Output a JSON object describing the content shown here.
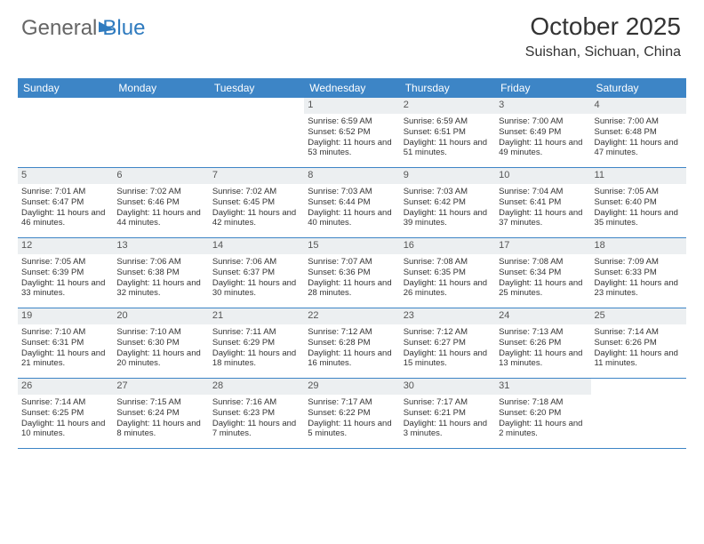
{
  "logo": {
    "part1": "General",
    "part2": "Blue"
  },
  "title": "October 2025",
  "location": "Suishan, Sichuan, China",
  "dayNames": [
    "Sunday",
    "Monday",
    "Tuesday",
    "Wednesday",
    "Thursday",
    "Friday",
    "Saturday"
  ],
  "colors": {
    "headerBar": "#3d85c6",
    "numBg": "#eceff1",
    "logoBlue": "#2f7bbf"
  },
  "weeks": [
    [
      {
        "n": "",
        "sr": "",
        "ss": "",
        "dl": ""
      },
      {
        "n": "",
        "sr": "",
        "ss": "",
        "dl": ""
      },
      {
        "n": "",
        "sr": "",
        "ss": "",
        "dl": ""
      },
      {
        "n": "1",
        "sr": "Sunrise: 6:59 AM",
        "ss": "Sunset: 6:52 PM",
        "dl": "Daylight: 11 hours and 53 minutes."
      },
      {
        "n": "2",
        "sr": "Sunrise: 6:59 AM",
        "ss": "Sunset: 6:51 PM",
        "dl": "Daylight: 11 hours and 51 minutes."
      },
      {
        "n": "3",
        "sr": "Sunrise: 7:00 AM",
        "ss": "Sunset: 6:49 PM",
        "dl": "Daylight: 11 hours and 49 minutes."
      },
      {
        "n": "4",
        "sr": "Sunrise: 7:00 AM",
        "ss": "Sunset: 6:48 PM",
        "dl": "Daylight: 11 hours and 47 minutes."
      }
    ],
    [
      {
        "n": "5",
        "sr": "Sunrise: 7:01 AM",
        "ss": "Sunset: 6:47 PM",
        "dl": "Daylight: 11 hours and 46 minutes."
      },
      {
        "n": "6",
        "sr": "Sunrise: 7:02 AM",
        "ss": "Sunset: 6:46 PM",
        "dl": "Daylight: 11 hours and 44 minutes."
      },
      {
        "n": "7",
        "sr": "Sunrise: 7:02 AM",
        "ss": "Sunset: 6:45 PM",
        "dl": "Daylight: 11 hours and 42 minutes."
      },
      {
        "n": "8",
        "sr": "Sunrise: 7:03 AM",
        "ss": "Sunset: 6:44 PM",
        "dl": "Daylight: 11 hours and 40 minutes."
      },
      {
        "n": "9",
        "sr": "Sunrise: 7:03 AM",
        "ss": "Sunset: 6:42 PM",
        "dl": "Daylight: 11 hours and 39 minutes."
      },
      {
        "n": "10",
        "sr": "Sunrise: 7:04 AM",
        "ss": "Sunset: 6:41 PM",
        "dl": "Daylight: 11 hours and 37 minutes."
      },
      {
        "n": "11",
        "sr": "Sunrise: 7:05 AM",
        "ss": "Sunset: 6:40 PM",
        "dl": "Daylight: 11 hours and 35 minutes."
      }
    ],
    [
      {
        "n": "12",
        "sr": "Sunrise: 7:05 AM",
        "ss": "Sunset: 6:39 PM",
        "dl": "Daylight: 11 hours and 33 minutes."
      },
      {
        "n": "13",
        "sr": "Sunrise: 7:06 AM",
        "ss": "Sunset: 6:38 PM",
        "dl": "Daylight: 11 hours and 32 minutes."
      },
      {
        "n": "14",
        "sr": "Sunrise: 7:06 AM",
        "ss": "Sunset: 6:37 PM",
        "dl": "Daylight: 11 hours and 30 minutes."
      },
      {
        "n": "15",
        "sr": "Sunrise: 7:07 AM",
        "ss": "Sunset: 6:36 PM",
        "dl": "Daylight: 11 hours and 28 minutes."
      },
      {
        "n": "16",
        "sr": "Sunrise: 7:08 AM",
        "ss": "Sunset: 6:35 PM",
        "dl": "Daylight: 11 hours and 26 minutes."
      },
      {
        "n": "17",
        "sr": "Sunrise: 7:08 AM",
        "ss": "Sunset: 6:34 PM",
        "dl": "Daylight: 11 hours and 25 minutes."
      },
      {
        "n": "18",
        "sr": "Sunrise: 7:09 AM",
        "ss": "Sunset: 6:33 PM",
        "dl": "Daylight: 11 hours and 23 minutes."
      }
    ],
    [
      {
        "n": "19",
        "sr": "Sunrise: 7:10 AM",
        "ss": "Sunset: 6:31 PM",
        "dl": "Daylight: 11 hours and 21 minutes."
      },
      {
        "n": "20",
        "sr": "Sunrise: 7:10 AM",
        "ss": "Sunset: 6:30 PM",
        "dl": "Daylight: 11 hours and 20 minutes."
      },
      {
        "n": "21",
        "sr": "Sunrise: 7:11 AM",
        "ss": "Sunset: 6:29 PM",
        "dl": "Daylight: 11 hours and 18 minutes."
      },
      {
        "n": "22",
        "sr": "Sunrise: 7:12 AM",
        "ss": "Sunset: 6:28 PM",
        "dl": "Daylight: 11 hours and 16 minutes."
      },
      {
        "n": "23",
        "sr": "Sunrise: 7:12 AM",
        "ss": "Sunset: 6:27 PM",
        "dl": "Daylight: 11 hours and 15 minutes."
      },
      {
        "n": "24",
        "sr": "Sunrise: 7:13 AM",
        "ss": "Sunset: 6:26 PM",
        "dl": "Daylight: 11 hours and 13 minutes."
      },
      {
        "n": "25",
        "sr": "Sunrise: 7:14 AM",
        "ss": "Sunset: 6:26 PM",
        "dl": "Daylight: 11 hours and 11 minutes."
      }
    ],
    [
      {
        "n": "26",
        "sr": "Sunrise: 7:14 AM",
        "ss": "Sunset: 6:25 PM",
        "dl": "Daylight: 11 hours and 10 minutes."
      },
      {
        "n": "27",
        "sr": "Sunrise: 7:15 AM",
        "ss": "Sunset: 6:24 PM",
        "dl": "Daylight: 11 hours and 8 minutes."
      },
      {
        "n": "28",
        "sr": "Sunrise: 7:16 AM",
        "ss": "Sunset: 6:23 PM",
        "dl": "Daylight: 11 hours and 7 minutes."
      },
      {
        "n": "29",
        "sr": "Sunrise: 7:17 AM",
        "ss": "Sunset: 6:22 PM",
        "dl": "Daylight: 11 hours and 5 minutes."
      },
      {
        "n": "30",
        "sr": "Sunrise: 7:17 AM",
        "ss": "Sunset: 6:21 PM",
        "dl": "Daylight: 11 hours and 3 minutes."
      },
      {
        "n": "31",
        "sr": "Sunrise: 7:18 AM",
        "ss": "Sunset: 6:20 PM",
        "dl": "Daylight: 11 hours and 2 minutes."
      },
      {
        "n": "",
        "sr": "",
        "ss": "",
        "dl": ""
      }
    ]
  ]
}
